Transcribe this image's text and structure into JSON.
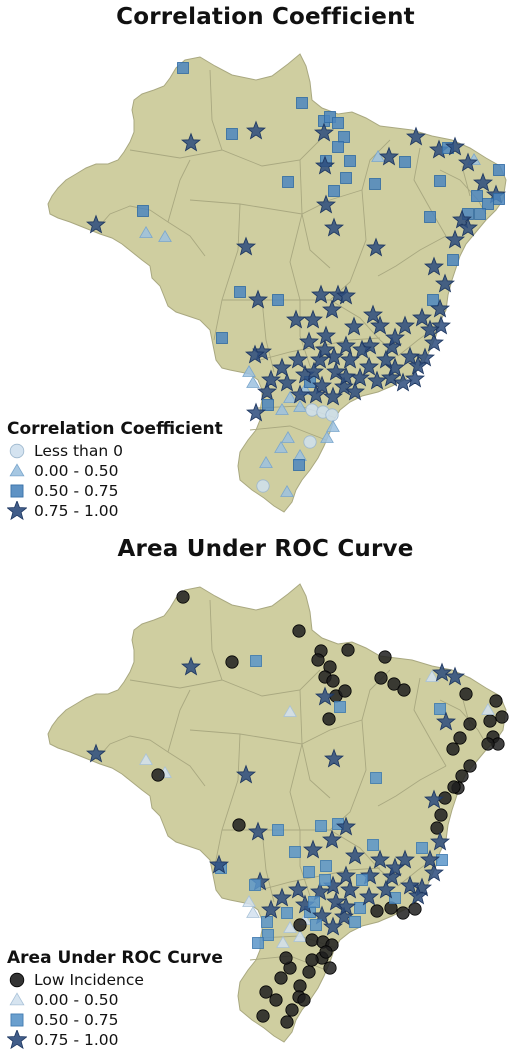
{
  "maps": [
    {
      "title": "Correlation Coefficient",
      "legend_title": "Correlation Coefficient",
      "legend_items": [
        {
          "label": "Less than 0",
          "symbol": "circle",
          "fill": "#cfe0ee",
          "stroke": "#9db7cd"
        },
        {
          "label": "0.00 - 0.50",
          "symbol": "triangle",
          "fill": "#9cc1df",
          "stroke": "#7aa6cc"
        },
        {
          "label": "0.50 - 0.75",
          "symbol": "square",
          "fill": "#4c86be",
          "stroke": "#2f6aa3"
        },
        {
          "label": "0.75 - 1.00",
          "symbol": "star",
          "fill": "#2c4b7c",
          "stroke": "#1d3660"
        }
      ]
    },
    {
      "title": "Area Under ROC Curve",
      "legend_title": "Area Under ROC Curve",
      "legend_items": [
        {
          "label": "Low Incidence",
          "symbol": "circle",
          "fill": "#1e1e1e",
          "stroke": "#000000"
        },
        {
          "label": "0.00 - 0.50",
          "symbol": "triangle",
          "fill": "#d2e1ee",
          "stroke": "#a9c2d8"
        },
        {
          "label": "0.50 - 0.75",
          "symbol": "square",
          "fill": "#5a95c9",
          "stroke": "#3b77ad"
        },
        {
          "label": "0.75 - 1.00",
          "symbol": "star",
          "fill": "#2c4b7c",
          "stroke": "#1d3660"
        }
      ]
    }
  ],
  "colors": {
    "land": "#cfcea0",
    "land_border": "#a9a880",
    "background": "#ffffff"
  }
}
